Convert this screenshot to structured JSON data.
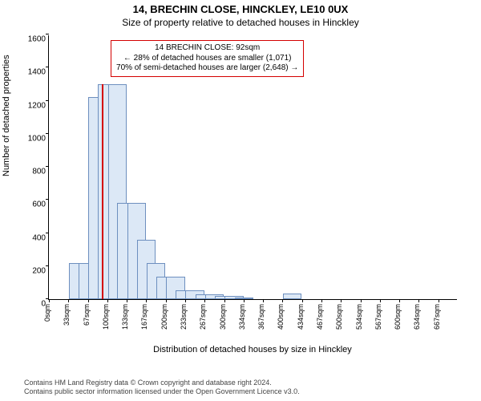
{
  "title": "14, BRECHIN CLOSE, HINCKLEY, LE10 0UX",
  "subtitle": "Size of property relative to detached houses in Hinckley",
  "y_axis_label": "Number of detached properties",
  "x_axis_label": "Distribution of detached houses by size in Hinckley",
  "footer_line1": "Contains HM Land Registry data © Crown copyright and database right 2024.",
  "footer_line2": "Contains public sector information licensed under the Open Government Licence v3.0.",
  "chart": {
    "type": "histogram",
    "ylim": [
      0,
      1600
    ],
    "yticks": [
      0,
      200,
      400,
      600,
      800,
      1000,
      1200,
      1400,
      1600
    ],
    "xticks": [
      "0sqm",
      "33sqm",
      "67sqm",
      "100sqm",
      "133sqm",
      "167sqm",
      "200sqm",
      "233sqm",
      "267sqm",
      "300sqm",
      "334sqm",
      "367sqm",
      "400sqm",
      "434sqm",
      "467sqm",
      "500sqm",
      "534sqm",
      "567sqm",
      "600sqm",
      "634sqm",
      "667sqm"
    ],
    "x_max_sqm": 700,
    "bars": [
      {
        "x_sqm": 33,
        "count": 0
      },
      {
        "x_sqm": 50,
        "count": 220
      },
      {
        "x_sqm": 67,
        "count": 220
      },
      {
        "x_sqm": 83,
        "count": 1220
      },
      {
        "x_sqm": 100,
        "count": 1300
      },
      {
        "x_sqm": 117,
        "count": 1300
      },
      {
        "x_sqm": 133,
        "count": 580
      },
      {
        "x_sqm": 150,
        "count": 580
      },
      {
        "x_sqm": 167,
        "count": 360
      },
      {
        "x_sqm": 183,
        "count": 220
      },
      {
        "x_sqm": 200,
        "count": 135
      },
      {
        "x_sqm": 217,
        "count": 135
      },
      {
        "x_sqm": 233,
        "count": 55
      },
      {
        "x_sqm": 250,
        "count": 55
      },
      {
        "x_sqm": 267,
        "count": 30
      },
      {
        "x_sqm": 283,
        "count": 30
      },
      {
        "x_sqm": 300,
        "count": 18
      },
      {
        "x_sqm": 317,
        "count": 18
      },
      {
        "x_sqm": 334,
        "count": 10
      },
      {
        "x_sqm": 350,
        "count": 0
      },
      {
        "x_sqm": 367,
        "count": 0
      },
      {
        "x_sqm": 384,
        "count": 0
      },
      {
        "x_sqm": 400,
        "count": 0
      },
      {
        "x_sqm": 417,
        "count": 35
      },
      {
        "x_sqm": 434,
        "count": 0
      }
    ],
    "bar_fill": "#dce8f6",
    "bar_stroke": "#6d8fbf",
    "marker": {
      "x_sqm": 92,
      "color": "#d40000",
      "height_count": 1300
    },
    "annotation": {
      "line1": "14 BRECHIN CLOSE: 92sqm",
      "line2": "← 28% of detached houses are smaller (1,071)",
      "line3": "70% of semi-detached houses are larger (2,648) →",
      "border_color": "#d40000"
    }
  }
}
